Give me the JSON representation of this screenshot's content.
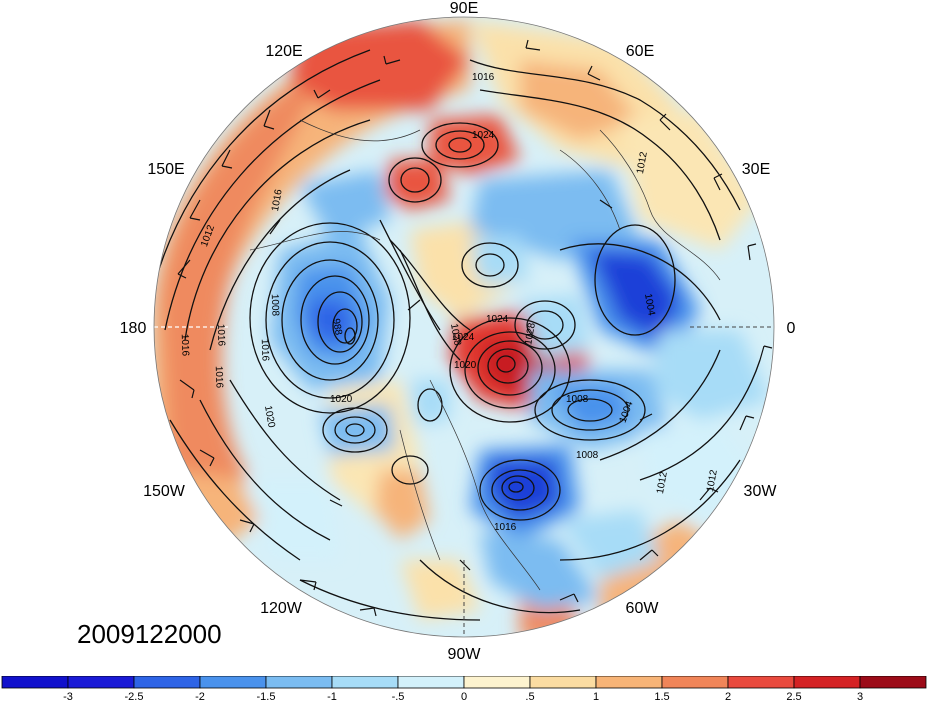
{
  "timestamp": "2009122000",
  "longitude_labels": [
    "90E",
    "60E",
    "30E",
    "0",
    "30W",
    "60W",
    "90W",
    "120W",
    "150W",
    "180",
    "150E",
    "120E"
  ],
  "isobar_labels": [
    "1016",
    "1024",
    "1016",
    "1012",
    "1016",
    "1008",
    "988",
    "1016",
    "1016",
    "1016",
    "1020",
    "1020",
    "1024",
    "1028",
    "1028",
    "1008",
    "1004",
    "1004",
    "1008",
    "1012",
    "1012",
    "1012",
    "1016",
    "1020",
    "1024"
  ],
  "colorbar": {
    "labels": [
      "-3",
      "-2.5",
      "-2",
      "-1.5",
      "-1",
      "-.5",
      "0",
      ".5",
      "1",
      "1.5",
      "2",
      "2.5",
      "3"
    ],
    "colors": [
      "#1a1ad6",
      "#2e64e6",
      "#4a92ec",
      "#7bbcf1",
      "#a7dcf7",
      "#d3f1fb",
      "#fdf3cf",
      "#fbdca2",
      "#f7b477",
      "#f08559",
      "#e94a3e",
      "#d42224",
      "#9c0b18"
    ]
  }
}
